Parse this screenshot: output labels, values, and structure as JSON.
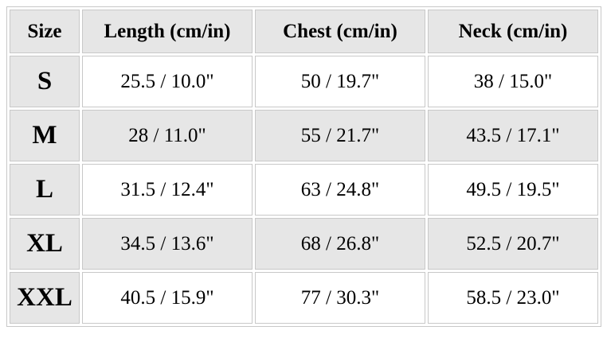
{
  "table": {
    "header": [
      "Size",
      "Length (cm/in)",
      "Chest (cm/in)",
      "Neck (cm/in)"
    ],
    "rows": [
      [
        "S",
        "25.5 / 10.0\"",
        "50 / 19.7\"",
        "38 / 15.0\""
      ],
      [
        "M",
        "28 / 11.0\"",
        "55 / 21.7\"",
        "43.5 / 17.1\""
      ],
      [
        "L",
        "31.5 / 12.4\"",
        "63 / 24.8\"",
        "49.5 / 19.5\""
      ],
      [
        "XL",
        "34.5 / 13.6\"",
        "68 / 26.8\"",
        "52.5 / 20.7\""
      ],
      [
        "XXL",
        "40.5 / 15.9\"",
        "77 / 30.3\"",
        "58.5 / 23.0\""
      ]
    ]
  }
}
